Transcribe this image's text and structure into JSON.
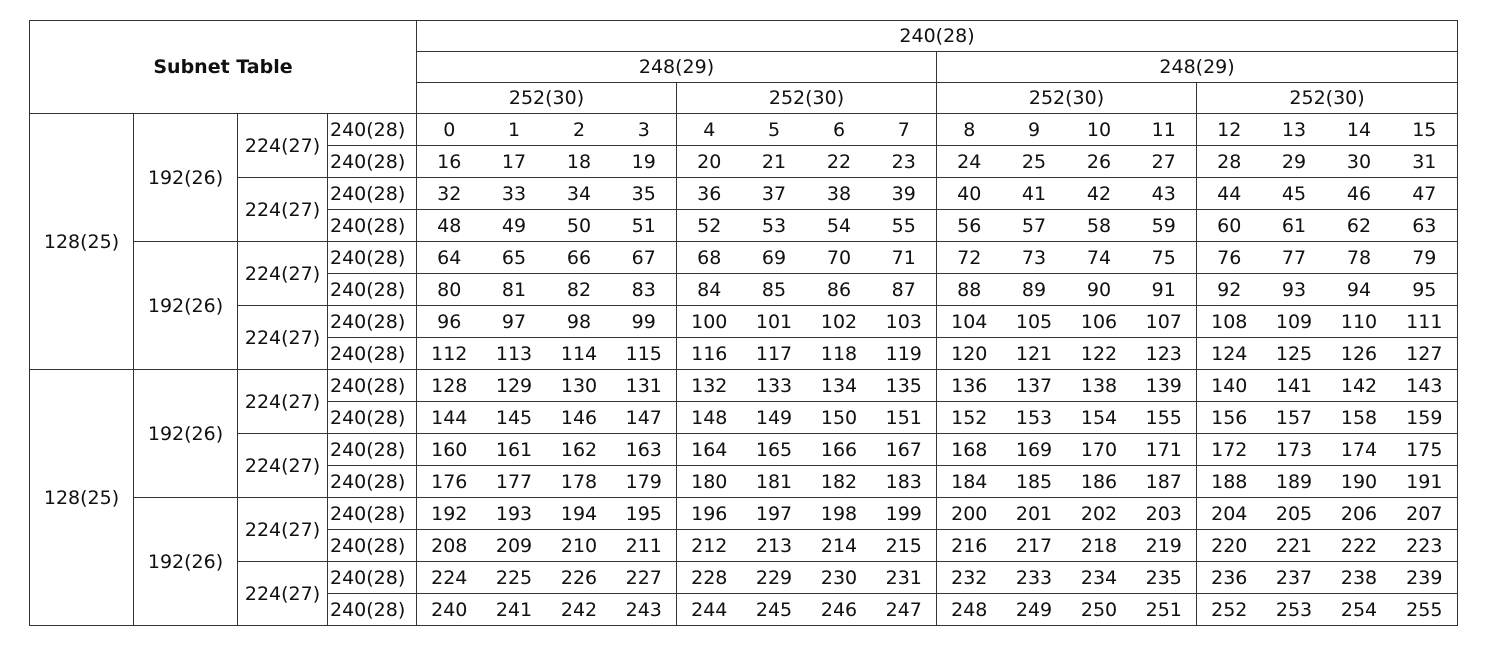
{
  "table": {
    "title": "Subnet Table",
    "header": {
      "top": "240(28)",
      "second": [
        "248(29)",
        "248(29)"
      ],
      "third": [
        "252(30)",
        "252(30)",
        "252(30)",
        "252(30)"
      ]
    },
    "row_labels": {
      "c25": "128(25)",
      "c26": "192(26)",
      "c27": "224(27)",
      "c28": "240(28)"
    },
    "values": [
      [
        "0",
        "1",
        "2",
        "3",
        "4",
        "5",
        "6",
        "7",
        "8",
        "9",
        "10",
        "11",
        "12",
        "13",
        "14",
        "15"
      ],
      [
        "16",
        "17",
        "18",
        "19",
        "20",
        "21",
        "22",
        "23",
        "24",
        "25",
        "26",
        "27",
        "28",
        "29",
        "30",
        "31"
      ],
      [
        "32",
        "33",
        "34",
        "35",
        "36",
        "37",
        "38",
        "39",
        "40",
        "41",
        "42",
        "43",
        "44",
        "45",
        "46",
        "47"
      ],
      [
        "48",
        "49",
        "50",
        "51",
        "52",
        "53",
        "54",
        "55",
        "56",
        "57",
        "58",
        "59",
        "60",
        "61",
        "62",
        "63"
      ],
      [
        "64",
        "65",
        "66",
        "67",
        "68",
        "69",
        "70",
        "71",
        "72",
        "73",
        "74",
        "75",
        "76",
        "77",
        "78",
        "79"
      ],
      [
        "80",
        "81",
        "82",
        "83",
        "84",
        "85",
        "86",
        "87",
        "88",
        "89",
        "90",
        "91",
        "92",
        "93",
        "94",
        "95"
      ],
      [
        "96",
        "97",
        "98",
        "99",
        "100",
        "101",
        "102",
        "103",
        "104",
        "105",
        "106",
        "107",
        "108",
        "109",
        "110",
        "111"
      ],
      [
        "112",
        "113",
        "114",
        "115",
        "116",
        "117",
        "118",
        "119",
        "120",
        "121",
        "122",
        "123",
        "124",
        "125",
        "126",
        "127"
      ],
      [
        "128",
        "129",
        "130",
        "131",
        "132",
        "133",
        "134",
        "135",
        "136",
        "137",
        "138",
        "139",
        "140",
        "141",
        "142",
        "143"
      ],
      [
        "144",
        "145",
        "146",
        "147",
        "148",
        "149",
        "150",
        "151",
        "152",
        "153",
        "154",
        "155",
        "156",
        "157",
        "158",
        "159"
      ],
      [
        "160",
        "161",
        "162",
        "163",
        "164",
        "165",
        "166",
        "167",
        "168",
        "169",
        "170",
        "171",
        "172",
        "173",
        "174",
        "175"
      ],
      [
        "176",
        "177",
        "178",
        "179",
        "180",
        "181",
        "182",
        "183",
        "184",
        "185",
        "186",
        "187",
        "188",
        "189",
        "190",
        "191"
      ],
      [
        "192",
        "193",
        "194",
        "195",
        "196",
        "197",
        "198",
        "199",
        "200",
        "201",
        "202",
        "203",
        "204",
        "205",
        "206",
        "207"
      ],
      [
        "208",
        "209",
        "210",
        "211",
        "212",
        "213",
        "214",
        "215",
        "216",
        "217",
        "218",
        "219",
        "220",
        "221",
        "222",
        "223"
      ],
      [
        "224",
        "225",
        "226",
        "227",
        "228",
        "229",
        "230",
        "231",
        "232",
        "233",
        "234",
        "235",
        "236",
        "237",
        "238",
        "239"
      ],
      [
        "240",
        "241",
        "242",
        "243",
        "244",
        "245",
        "246",
        "247",
        "248",
        "249",
        "250",
        "251",
        "252",
        "253",
        "254",
        "255"
      ]
    ]
  }
}
